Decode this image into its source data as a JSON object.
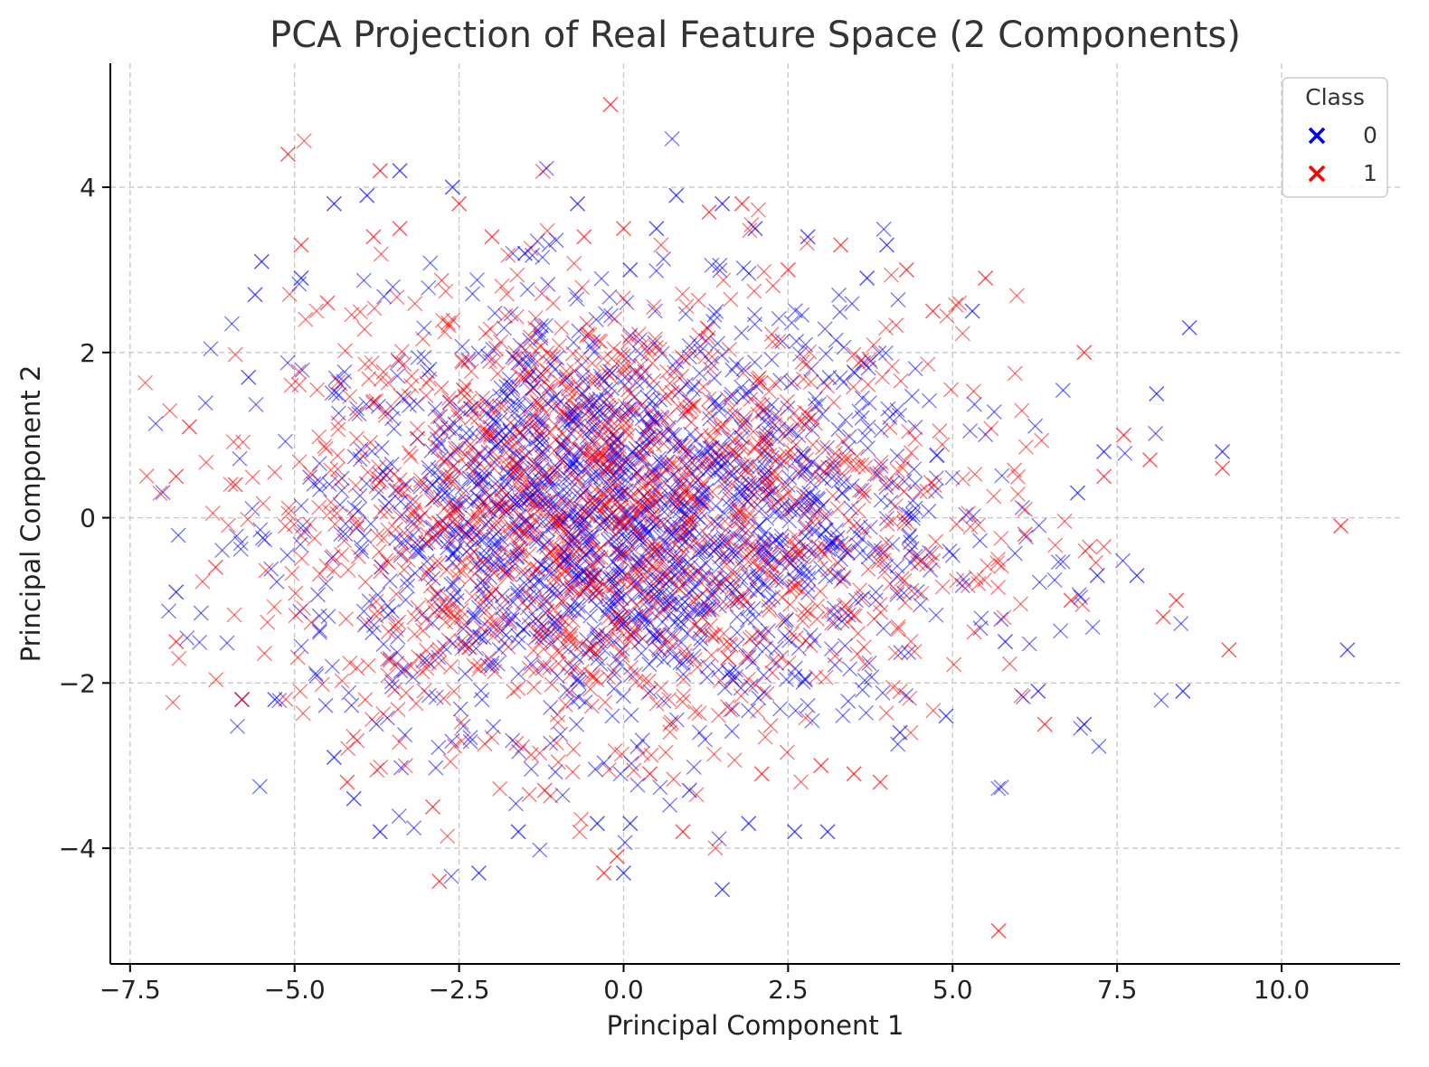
{
  "chart_data": {
    "type": "scatter",
    "title": "PCA Projection of Real Feature Space (2 Components)",
    "xlabel": "Principal Component 1",
    "ylabel": "Principal Component 2",
    "xlim": [
      -7.8,
      11.8
    ],
    "ylim": [
      -5.4,
      5.5
    ],
    "xticks": [
      -7.5,
      -5.0,
      -2.5,
      0.0,
      2.5,
      5.0,
      7.5,
      10.0
    ],
    "xtick_labels": [
      "−7.5",
      "−5.0",
      "−2.5",
      "0.0",
      "2.5",
      "5.0",
      "7.5",
      "10.0"
    ],
    "yticks": [
      -4,
      -2,
      0,
      2,
      4
    ],
    "ytick_labels": [
      "−4",
      "−2",
      "0",
      "2",
      "4"
    ],
    "grid": true,
    "marker": "x",
    "legend": {
      "title": "Class",
      "placement": "top-right"
    },
    "series": [
      {
        "name": "0",
        "color": "#0000ff",
        "x": [
          -6.8,
          -5.8,
          -5.7,
          -5.6,
          -5.5,
          -5.3,
          -4.9,
          -4.4,
          -4.4,
          -4.1,
          -3.9,
          -3.7,
          -3.4,
          -2.6,
          -2.2,
          -1.6,
          -1.5,
          -0.7,
          -0.4,
          0.0,
          0.1,
          0.1,
          0.5,
          0.8,
          1.0,
          1.5,
          1.5,
          1.9,
          2.0,
          2.6,
          2.8,
          3.1,
          3.7,
          4.0,
          4.2,
          4.9,
          5.3,
          5.8,
          6.3,
          6.9,
          7.0,
          7.2,
          7.3,
          7.8,
          8.1,
          8.5,
          8.6,
          9.1,
          11.0
        ],
        "y": [
          -0.9,
          -2.2,
          1.7,
          2.7,
          3.1,
          -2.2,
          2.9,
          3.8,
          -2.9,
          -3.4,
          3.9,
          -3.8,
          4.2,
          4.0,
          -4.3,
          -3.8,
          3.2,
          3.8,
          -3.7,
          -4.3,
          3.0,
          -3.7,
          3.5,
          3.9,
          -3.3,
          -4.5,
          3.8,
          -3.7,
          3.5,
          -3.8,
          3.4,
          -3.8,
          2.9,
          3.3,
          -2.6,
          -2.4,
          2.5,
          -1.5,
          -2.1,
          0.3,
          -2.5,
          -0.7,
          0.8,
          -0.7,
          1.5,
          -2.1,
          2.3,
          0.8,
          -1.6
        ]
      },
      {
        "name": "1",
        "color": "#ff0000",
        "x": [
          -6.8,
          -6.8,
          -6.6,
          -6.2,
          -5.9,
          -5.8,
          -5.1,
          -4.9,
          -4.5,
          -4.2,
          -3.8,
          -3.7,
          -3.4,
          -2.9,
          -2.8,
          -2.5,
          -2.0,
          -1.2,
          -0.6,
          -0.3,
          -0.2,
          -0.1,
          0.0,
          0.4,
          0.9,
          1.3,
          1.8,
          2.1,
          2.5,
          3.0,
          3.3,
          3.5,
          3.9,
          4.3,
          4.7,
          5.5,
          5.7,
          6.1,
          6.4,
          6.8,
          7.0,
          7.3,
          7.6,
          8.0,
          8.2,
          8.4,
          9.1,
          9.2,
          10.9
        ],
        "y": [
          0.5,
          -1.5,
          1.1,
          -0.6,
          0.4,
          -2.2,
          4.4,
          3.3,
          2.6,
          -3.2,
          3.4,
          4.2,
          3.5,
          -3.5,
          -4.4,
          3.8,
          3.4,
          -3.3,
          3.4,
          -4.3,
          5.0,
          -4.1,
          3.5,
          -3.1,
          -3.8,
          3.7,
          3.8,
          -3.1,
          3.0,
          -3.0,
          3.3,
          -3.1,
          -3.2,
          3.0,
          2.5,
          2.9,
          -5.0,
          -0.2,
          -2.5,
          -1.0,
          2.0,
          0.5,
          1.0,
          0.7,
          -1.2,
          -1.0,
          0.6,
          -1.6,
          -0.1
        ]
      }
    ]
  }
}
